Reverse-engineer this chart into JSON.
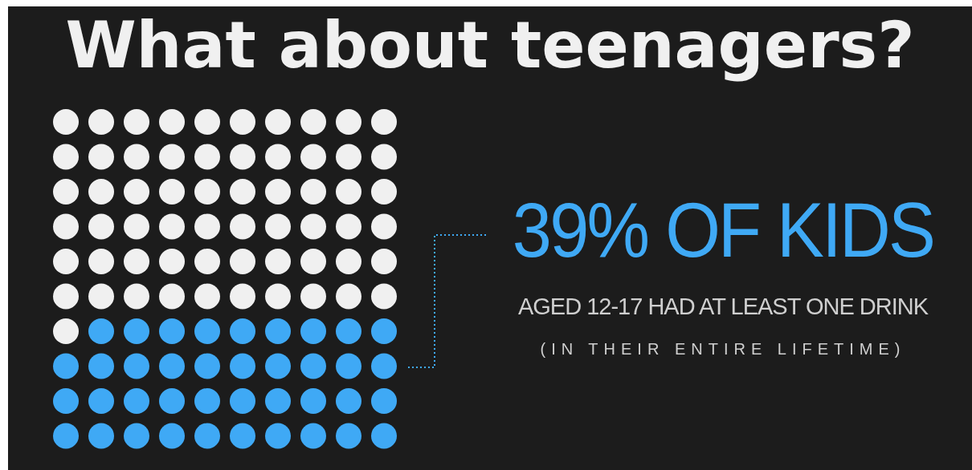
{
  "chart_data": {
    "type": "other",
    "title": "What about teenagers?",
    "categories": [
      null
    ],
    "values": [
      39
    ],
    "colors": [
      "#3fa9f5"
    ],
    "value_labels": [
      "39% OF KIDS"
    ],
    "annotations": [
      "AGED 12-17 HAD AT LEAST ONE DRINK",
      "(IN THEIR ENTIRE LIFETIME)"
    ]
  }
}
